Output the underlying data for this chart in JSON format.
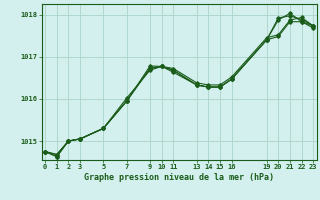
{
  "title": "Graphe pression niveau de la mer (hPa)",
  "background_color": "#d4f0ee",
  "grid_color": "#b0d8cc",
  "line_color": "#1a5c1a",
  "x_ticks": [
    0,
    1,
    2,
    3,
    5,
    7,
    9,
    10,
    11,
    13,
    14,
    15,
    16,
    19,
    20,
    21,
    22,
    23
  ],
  "xlim": [
    -0.3,
    23.3
  ],
  "ylim": [
    1014.55,
    1018.25
  ],
  "yticks": [
    1015,
    1016,
    1017,
    1018
  ],
  "series": [
    [
      0,
      1,
      2,
      3,
      5,
      7,
      9,
      10,
      11,
      13,
      14,
      15,
      16,
      19,
      20,
      21,
      22,
      23
    ],
    [
      1014.75,
      1014.68,
      1015.0,
      1015.05,
      1015.3,
      1015.95,
      1016.72,
      1016.77,
      1016.72,
      1016.38,
      1016.33,
      1016.33,
      1016.52,
      1017.45,
      1017.52,
      1017.87,
      1017.93,
      1017.73
    ],
    [
      1014.75,
      1014.63,
      1015.0,
      1015.05,
      1015.3,
      1015.95,
      1016.78,
      1016.77,
      1016.68,
      1016.33,
      1016.28,
      1016.28,
      1016.47,
      1017.4,
      1017.92,
      1017.97,
      1017.88,
      1017.73
    ],
    [
      1014.75,
      1014.63,
      1015.0,
      1015.05,
      1015.3,
      1016.02,
      1016.68,
      1016.77,
      1016.63,
      1016.33,
      1016.28,
      1016.28,
      1016.47,
      1017.4,
      1017.87,
      1018.03,
      1017.83,
      1017.73
    ],
    [
      1014.75,
      1014.68,
      1015.0,
      1015.05,
      1015.3,
      1015.95,
      1016.73,
      1016.77,
      1016.68,
      1016.33,
      1016.28,
      1016.28,
      1016.47,
      1017.4,
      1017.48,
      1017.83,
      1017.83,
      1017.68
    ]
  ]
}
